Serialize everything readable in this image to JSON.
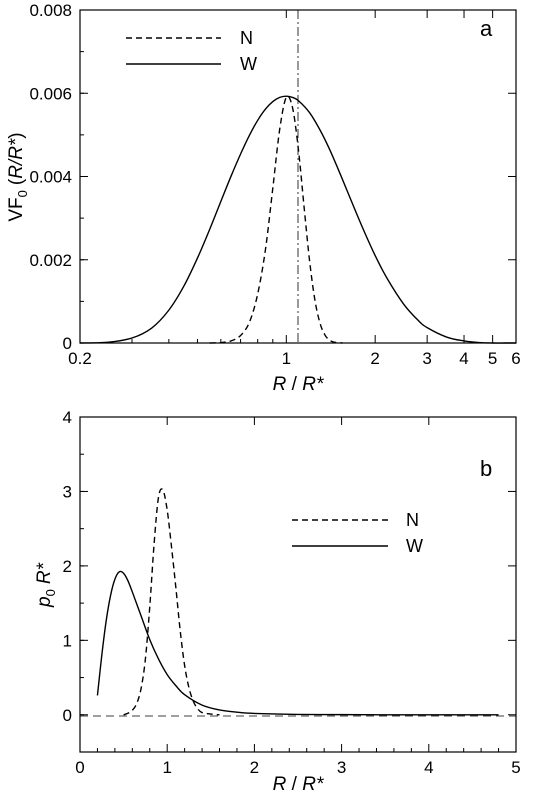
{
  "chart_data": [
    {
      "panel": "a",
      "type": "line",
      "xscale": "log",
      "xlabel_italic": "R",
      "xlabel_sep": " / ",
      "xlabel_italic2": "R*",
      "ylabel_main": "VF",
      "ylabel_sub": "0",
      "ylabel_paren": "(",
      "ylabel_italic": "R/R*",
      "ylabel_close": ")",
      "xlim": [
        0.2,
        6
      ],
      "ylim": [
        0,
        0.008
      ],
      "xticks": [
        {
          "value": 0.2,
          "label": "0.2"
        },
        {
          "value": 1,
          "label": "1"
        },
        {
          "value": 2,
          "label": "2"
        },
        {
          "value": 3,
          "label": "3"
        },
        {
          "value": 4,
          "label": "4"
        },
        {
          "value": 5,
          "label": "5"
        },
        {
          "value": 6,
          "label": "6"
        }
      ],
      "yticks": [
        {
          "value": 0,
          "label": "0"
        },
        {
          "value": 0.002,
          "label": "0.002"
        },
        {
          "value": 0.004,
          "label": "0.004"
        },
        {
          "value": 0.006,
          "label": "0.006"
        },
        {
          "value": 0.008,
          "label": "0.008"
        }
      ],
      "reference_line": {
        "orientation": "vertical",
        "x": 1,
        "style": "dash-dot"
      },
      "legend_placement": "top-left",
      "series": [
        {
          "name": "N",
          "style": "dashed",
          "x": [
            0.55,
            0.6,
            0.65,
            0.7,
            0.75,
            0.8,
            0.85,
            0.9,
            0.95,
            1.0,
            1.05,
            1.1,
            1.15,
            1.2,
            1.25,
            1.3,
            1.35,
            1.4,
            1.45,
            1.5,
            1.55
          ],
          "y": [
            0.0,
            1e-05,
            5e-05,
            0.00018,
            0.0005,
            0.00118,
            0.00225,
            0.00372,
            0.00514,
            0.0059,
            0.00565,
            0.00462,
            0.00323,
            0.00195,
            0.00103,
            0.00048,
            0.0002,
            7e-05,
            2e-05,
            1e-05,
            0.0
          ]
        },
        {
          "name": "W",
          "style": "solid",
          "x": [
            0.2,
            0.25,
            0.3,
            0.35,
            0.4,
            0.45,
            0.5,
            0.55,
            0.6,
            0.65,
            0.7,
            0.75,
            0.8,
            0.85,
            0.9,
            0.95,
            1.0,
            1.05,
            1.1,
            1.2,
            1.3,
            1.4,
            1.5,
            1.6,
            1.8,
            2.0,
            2.2,
            2.5,
            2.8,
            3.0,
            3.5,
            4.0,
            4.5,
            5.0,
            5.5,
            6.0
          ],
          "y": [
            0.0,
            2e-05,
            0.00012,
            0.00036,
            0.00079,
            0.00137,
            0.00204,
            0.00273,
            0.0034,
            0.00401,
            0.00454,
            0.00499,
            0.00535,
            0.00562,
            0.0058,
            0.0059,
            0.00593,
            0.0059,
            0.00582,
            0.00553,
            0.00512,
            0.00466,
            0.00417,
            0.00369,
            0.00282,
            0.0021,
            0.00154,
            0.00093,
            0.00054,
            0.00037,
            0.00014,
            5e-05,
            1e-05,
            0.0,
            0.0,
            0.0
          ]
        }
      ]
    },
    {
      "panel": "b",
      "type": "line",
      "xscale": "linear",
      "xlabel_italic": "R",
      "xlabel_sep": " / ",
      "xlabel_italic2": "R*",
      "ylabel_italic": "p",
      "ylabel_sub": "0",
      "ylabel_italic2": "R*",
      "xlim": [
        0,
        5
      ],
      "ylim": [
        -0.5,
        4
      ],
      "xticks": [
        {
          "value": 0,
          "label": "0"
        },
        {
          "value": 1,
          "label": "1"
        },
        {
          "value": 2,
          "label": "2"
        },
        {
          "value": 3,
          "label": "3"
        },
        {
          "value": 4,
          "label": "4"
        },
        {
          "value": 5,
          "label": "5"
        }
      ],
      "yticks": [
        {
          "value": 0,
          "label": "0"
        },
        {
          "value": 1,
          "label": "1"
        },
        {
          "value": 2,
          "label": "2"
        },
        {
          "value": 3,
          "label": "3"
        },
        {
          "value": 4,
          "label": "4"
        }
      ],
      "reference_line": {
        "orientation": "horizontal",
        "y": 0,
        "style": "dashed"
      },
      "legend_placement": "center-right",
      "series": [
        {
          "name": "N",
          "style": "dashed",
          "x": [
            0.5,
            0.55,
            0.6,
            0.65,
            0.7,
            0.75,
            0.8,
            0.85,
            0.9,
            0.95,
            1.0,
            1.05,
            1.1,
            1.15,
            1.2,
            1.25,
            1.3,
            1.35,
            1.4,
            1.5,
            1.6
          ],
          "y": [
            0.0,
            0.02,
            0.06,
            0.15,
            0.35,
            0.75,
            1.45,
            2.3,
            2.92,
            3.02,
            2.75,
            2.25,
            1.7,
            1.12,
            0.66,
            0.36,
            0.18,
            0.08,
            0.03,
            0.01,
            0.0
          ]
        },
        {
          "name": "W",
          "style": "solid",
          "x": [
            0.2,
            0.25,
            0.3,
            0.35,
            0.4,
            0.45,
            0.5,
            0.55,
            0.6,
            0.7,
            0.8,
            0.9,
            1.0,
            1.1,
            1.2,
            1.4,
            1.6,
            1.8,
            2.0,
            2.5,
            3.0,
            3.5,
            4.0,
            4.5,
            4.8
          ],
          "y": [
            0.26,
            0.8,
            1.26,
            1.6,
            1.82,
            1.92,
            1.9,
            1.8,
            1.65,
            1.33,
            1.01,
            0.75,
            0.54,
            0.39,
            0.27,
            0.13,
            0.065,
            0.035,
            0.018,
            0.005,
            0.002,
            0.0,
            0.0,
            0.0,
            0.0
          ]
        }
      ]
    }
  ],
  "legend": {
    "a": {
      "n_label": "N",
      "w_label": "W"
    },
    "b": {
      "n_label": "N",
      "w_label": "W"
    }
  },
  "panels": {
    "a": {
      "letter": "a"
    },
    "b": {
      "letter": "b"
    }
  }
}
